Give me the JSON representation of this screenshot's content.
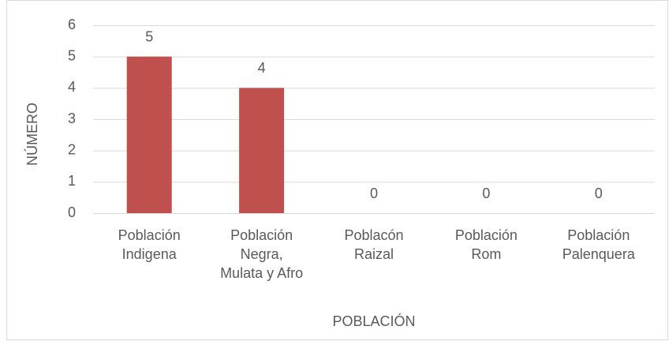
{
  "chart_data": {
    "type": "bar",
    "x_label": "POBLACIÓN",
    "y_label": "NÚMERO",
    "categories": [
      "Población\nIndigena",
      "Población\nNegra,\nMulata y Afro",
      "Poblacón\nRaizal",
      "Población\nRom",
      "Población\nPalenquera"
    ],
    "values": [
      5,
      4,
      0,
      0,
      0
    ],
    "color": "#c0504d",
    "ylim": [
      0,
      6
    ],
    "yticks": [
      0,
      1,
      2,
      3,
      4,
      5,
      6
    ],
    "grid": true,
    "data_labels": true
  }
}
